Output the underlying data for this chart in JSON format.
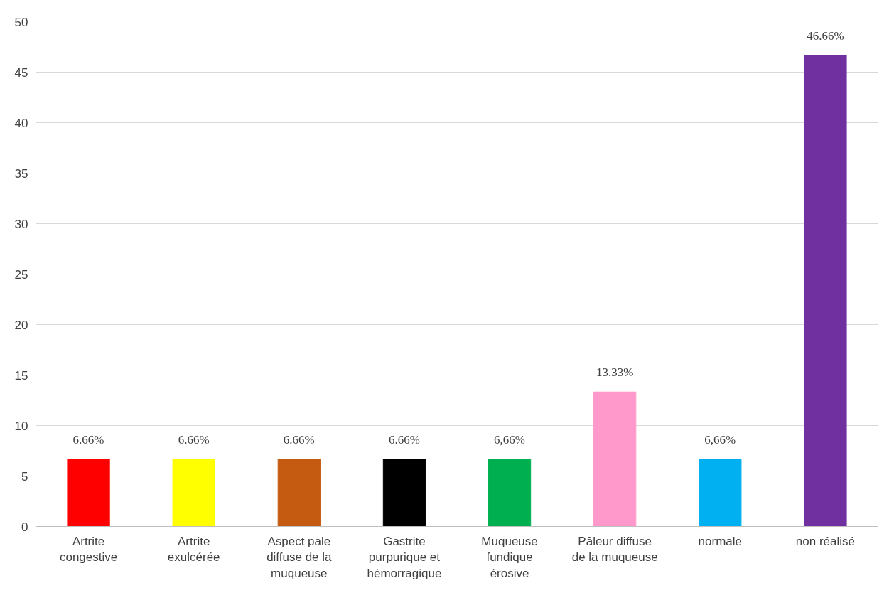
{
  "chart_data": {
    "type": "bar",
    "categories": [
      "Artrite congestive",
      "Artrite exulcérée",
      "Aspect pale diffuse de la muqueuse",
      "Gastrite purpurique et hémorragique",
      "Muqueuse fundique érosive",
      "Pâleur diffuse de la muqueuse",
      "normale",
      "non réalisé"
    ],
    "values": [
      6.66,
      6.66,
      6.66,
      6.66,
      6.66,
      13.33,
      6.66,
      46.66
    ],
    "colors": [
      "#ff0000",
      "#ffff00",
      "#c55a11",
      "#000000",
      "#00b050",
      "#ff99cc",
      "#00b0f0",
      "#7030a0"
    ],
    "value_labels": [
      "6.66%",
      "6.66%",
      "6.66%",
      "6.66%",
      "6,66%",
      "13.33%",
      "6,66%",
      "46.66%"
    ],
    "ylim": [
      0,
      50
    ],
    "yticks": [
      0,
      5,
      10,
      15,
      20,
      25,
      30,
      35,
      40,
      45,
      50
    ],
    "grid": "y"
  }
}
